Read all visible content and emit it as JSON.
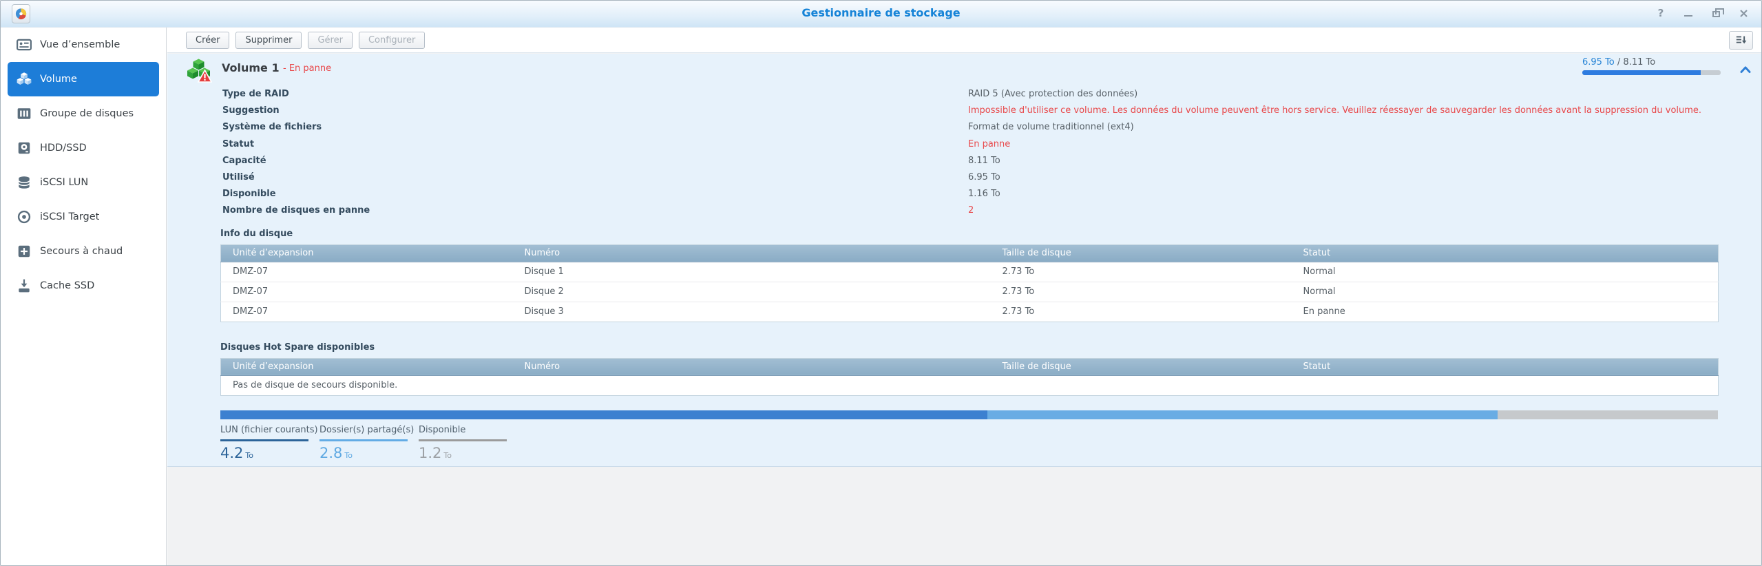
{
  "window": {
    "title": "Gestionnaire de stockage",
    "help_glyph": "?"
  },
  "colors": {
    "accent_blue": "#1d7dd8",
    "title_blue": "#1583d7",
    "error_red": "#e8484a",
    "ok_green": "#3fae4a",
    "panel_background": "#e7f2fb",
    "table_header": "#8aacc5",
    "bar_dark_blue": "#3c80d0",
    "bar_light_blue": "#69ace4",
    "bar_gray": "#c6c9cc"
  },
  "sidebar": {
    "items": [
      {
        "label": "Vue d’ensemble",
        "icon": "overview-icon"
      },
      {
        "label": "Volume",
        "icon": "volume-icon"
      },
      {
        "label": "Groupe de disques",
        "icon": "disk-group-icon"
      },
      {
        "label": "HDD/SSD",
        "icon": "hdd-icon"
      },
      {
        "label": "iSCSI LUN",
        "icon": "iscsi-lun-icon"
      },
      {
        "label": "iSCSI Target",
        "icon": "iscsi-target-icon"
      },
      {
        "label": "Secours à chaud",
        "icon": "hot-spare-icon"
      },
      {
        "label": "Cache SSD",
        "icon": "ssd-cache-icon"
      }
    ]
  },
  "toolbar": {
    "buttons": [
      {
        "label": "Créer",
        "enabled": true
      },
      {
        "label": "Supprimer",
        "enabled": true
      },
      {
        "label": "Gérer",
        "enabled": false
      },
      {
        "label": "Configurer",
        "enabled": false
      }
    ]
  },
  "volume": {
    "title": "Volume 1",
    "status": "- En panne",
    "usage": {
      "used": "6.95 To",
      "sep": " / ",
      "total": "8.11 To",
      "fraction": 0.857
    },
    "details": [
      {
        "label": "Type de RAID",
        "value": "RAID 5 (Avec protection des données)",
        "style": "normal"
      },
      {
        "label": "Suggestion",
        "value": "Impossible d'utiliser ce volume. Les données du volume peuvent être hors service. Veuillez réessayer de sauvegarder les données avant la suppression du volume.",
        "style": "error"
      },
      {
        "label": "Système de fichiers",
        "value": "Format de volume traditionnel (ext4)",
        "style": "normal"
      },
      {
        "label": "Statut",
        "value": "En panne",
        "style": "error"
      },
      {
        "label": "Capacité",
        "value": "8.11 To",
        "style": "normal"
      },
      {
        "label": "Utilisé",
        "value": "6.95 To",
        "style": "normal"
      },
      {
        "label": "Disponible",
        "value": "1.16 To",
        "style": "normal"
      },
      {
        "label": "Nombre de disques en panne",
        "value": "2",
        "style": "error"
      }
    ],
    "disk_info": {
      "title": "Info du disque",
      "headers": [
        "Unité d’expansion",
        "Numéro",
        "Taille de disque",
        "Statut"
      ],
      "rows": [
        {
          "unit": "DMZ-07",
          "num": "Disque 1",
          "size": "2.73 To",
          "status": "Normal",
          "status_style": "ok"
        },
        {
          "unit": "DMZ-07",
          "num": "Disque 2",
          "size": "2.73 To",
          "status": "Normal",
          "status_style": "ok"
        },
        {
          "unit": "DMZ-07",
          "num": "Disque 3",
          "size": "2.73 To",
          "status": "En panne",
          "status_style": "error"
        }
      ]
    },
    "hot_spare": {
      "title": "Disques Hot Spare disponibles",
      "headers": [
        "Unité d’expansion",
        "Numéro",
        "Taille de disque",
        "Statut"
      ],
      "empty": "Pas de disque de secours disponible."
    },
    "usage_breakdown": {
      "type": "stacked-bar",
      "segments": [
        {
          "label": "LUN (fichier courants)",
          "value": "4.2",
          "unit": "To",
          "fraction": 0.512,
          "color": "#3c80d0"
        },
        {
          "label": "Dossier(s) partagé(s)",
          "value": "2.8",
          "unit": "To",
          "fraction": 0.341,
          "color": "#69ace4"
        },
        {
          "label": "Disponible",
          "value": "1.2",
          "unit": "To",
          "fraction": 0.147,
          "color": "#c6c9cc"
        }
      ]
    }
  }
}
